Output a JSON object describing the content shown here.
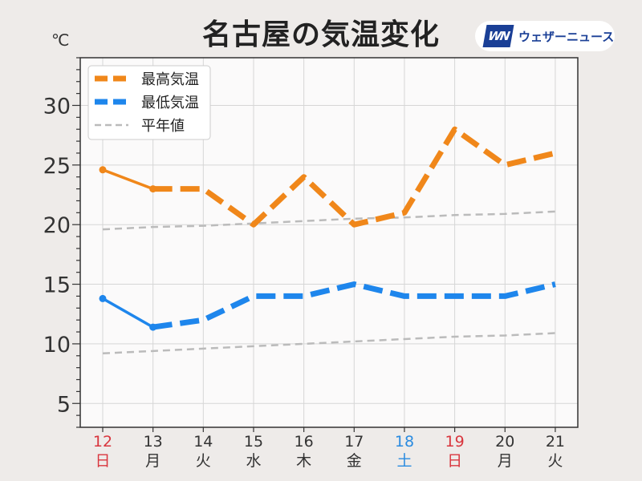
{
  "header": {
    "title": "名古屋の気温変化",
    "unit": "℃",
    "brand_text": "ウェザーニュース",
    "brand_mark": "WN"
  },
  "chart_data": {
    "type": "line",
    "title": "名古屋の気温変化",
    "ylabel": "℃",
    "ylim": [
      3,
      34
    ],
    "yticks": [
      5,
      10,
      15,
      20,
      25,
      30
    ],
    "grid": true,
    "legend_placement": "top-left",
    "categories": [
      "12",
      "13",
      "14",
      "15",
      "16",
      "17",
      "18",
      "19",
      "20",
      "21"
    ],
    "weekdays": [
      "日",
      "月",
      "火",
      "水",
      "木",
      "金",
      "土",
      "日",
      "月",
      "火"
    ],
    "category_colors": [
      "#d9363e",
      "#333333",
      "#333333",
      "#333333",
      "#333333",
      "#333333",
      "#2a8be0",
      "#d9363e",
      "#333333",
      "#333333"
    ],
    "series": [
      {
        "name": "最高気温",
        "color": "#f0871a",
        "values": [
          24.6,
          23,
          23,
          20,
          24,
          20,
          21,
          28,
          25,
          26
        ],
        "observed_count": 2
      },
      {
        "name": "最低気温",
        "color": "#1e86ec",
        "values": [
          13.8,
          11.4,
          12,
          14,
          14,
          15,
          14,
          14,
          14,
          15
        ],
        "observed_count": 2
      },
      {
        "name": "平年値",
        "color": "#bbbbbb",
        "values": [
          19.6,
          19.8,
          19.9,
          20.1,
          20.3,
          20.5,
          20.6,
          20.8,
          20.9,
          21.1
        ],
        "values_low": [
          9.2,
          9.4,
          9.6,
          9.8,
          10.0,
          10.2,
          10.4,
          10.6,
          10.7,
          10.9
        ]
      }
    ]
  }
}
